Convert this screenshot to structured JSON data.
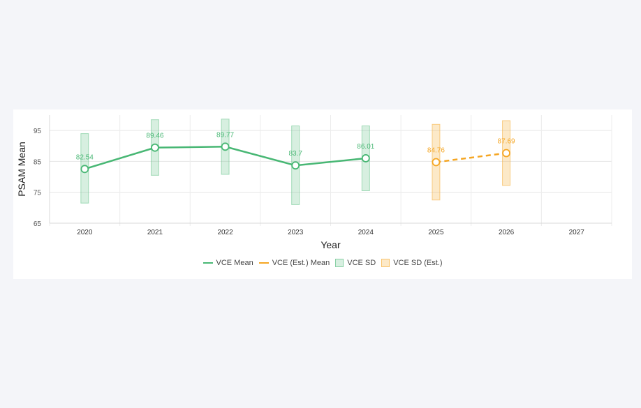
{
  "chart_data": {
    "type": "line",
    "categories": [
      "2020",
      "2021",
      "2022",
      "2023",
      "2024",
      "2025",
      "2026",
      "2027"
    ],
    "xlabel": "Year",
    "ylabel": "PSAM Mean",
    "ylim": [
      65,
      100
    ],
    "yticks": [
      65,
      75,
      85,
      95
    ],
    "grid": true,
    "legend_position": "bottom",
    "series": [
      {
        "name": "VCE Mean",
        "color": "#48b774",
        "style": "solid",
        "points": [
          {
            "x": "2020",
            "y": 82.54,
            "label": "82.54"
          },
          {
            "x": "2021",
            "y": 89.46,
            "label": "89.46"
          },
          {
            "x": "2022",
            "y": 89.77,
            "label": "89.77"
          },
          {
            "x": "2023",
            "y": 83.7,
            "label": "83.7"
          },
          {
            "x": "2024",
            "y": 86.01,
            "label": "86.01"
          }
        ]
      },
      {
        "name": "VCE (Est.) Mean",
        "color": "#f5a623",
        "style": "dashed",
        "points": [
          {
            "x": "2025",
            "y": 84.76,
            "label": "84.76"
          },
          {
            "x": "2026",
            "y": 87.69,
            "label": "87.69"
          }
        ]
      }
    ],
    "sd_series": [
      {
        "name": "VCE SD",
        "color": "#48b774",
        "ranges": [
          {
            "x": "2020",
            "low": 71.5,
            "high": 94
          },
          {
            "x": "2021",
            "low": 80.5,
            "high": 98.5
          },
          {
            "x": "2022",
            "low": 80.8,
            "high": 98.7
          },
          {
            "x": "2023",
            "low": 71,
            "high": 96.5
          },
          {
            "x": "2024",
            "low": 75.5,
            "high": 96.5
          }
        ]
      },
      {
        "name": "VCE SD (Est.)",
        "color": "#f5a623",
        "ranges": [
          {
            "x": "2025",
            "low": 72.5,
            "high": 97
          },
          {
            "x": "2026",
            "low": 77.2,
            "high": 98.2
          }
        ]
      }
    ]
  },
  "legend": {
    "mean_label": "VCE Mean",
    "est_mean_label": "VCE (Est.) Mean",
    "sd_label": "VCE SD",
    "est_sd_label": "VCE SD (Est.)"
  }
}
